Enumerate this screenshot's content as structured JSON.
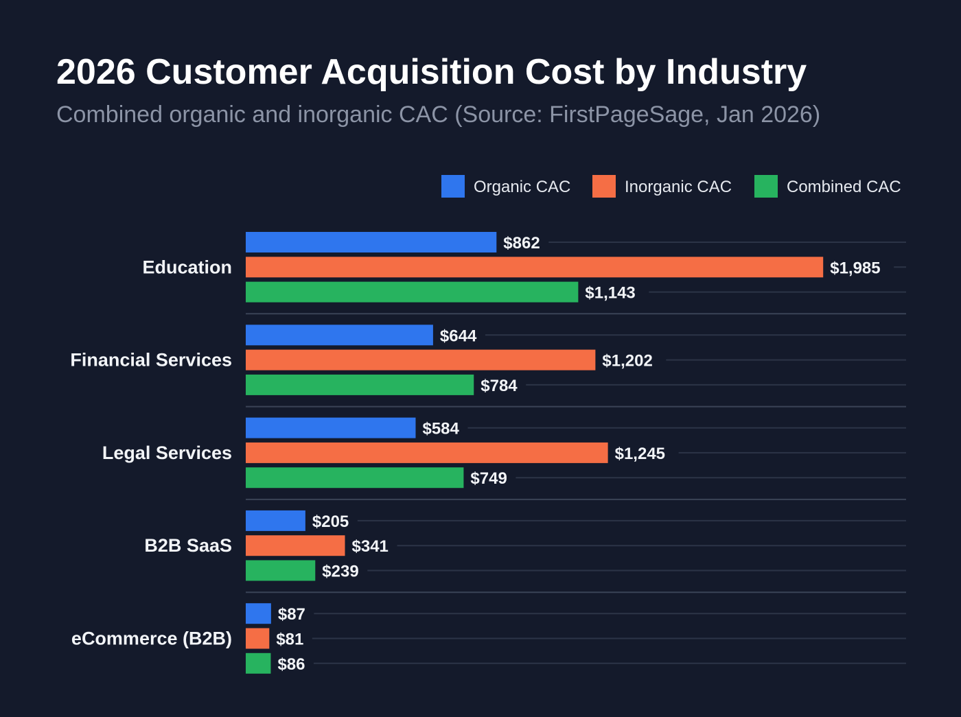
{
  "chart_data": {
    "type": "bar",
    "orientation": "horizontal",
    "title": "2026 Customer Acquisition Cost by Industry",
    "subtitle": "Combined organic and inorganic CAC (Source: FirstPageSage, Jan 2026)",
    "categories": [
      "Education",
      "Financial Services",
      "Legal Services",
      "B2B SaaS",
      "eCommerce (B2B)"
    ],
    "series": [
      {
        "name": "Organic CAC",
        "color": "#2f76ee",
        "values": [
          862,
          644,
          584,
          205,
          87
        ],
        "labels": [
          "$862",
          "$644",
          "$584",
          "$205",
          "$87"
        ]
      },
      {
        "name": "Inorganic CAC",
        "color": "#f56e45",
        "values": [
          1985,
          1202,
          1245,
          341,
          81
        ],
        "labels": [
          "$1,985",
          "$1,202",
          "$1,245",
          "$341",
          "$81"
        ]
      },
      {
        "name": "Combined CAC",
        "color": "#27b35f",
        "values": [
          1143,
          784,
          749,
          239,
          86
        ],
        "labels": [
          "$1,143",
          "$784",
          "$749",
          "$239",
          "$86"
        ]
      }
    ],
    "xlim": [
      0,
      2270
    ],
    "legend_position": "top-right",
    "grid": true
  }
}
